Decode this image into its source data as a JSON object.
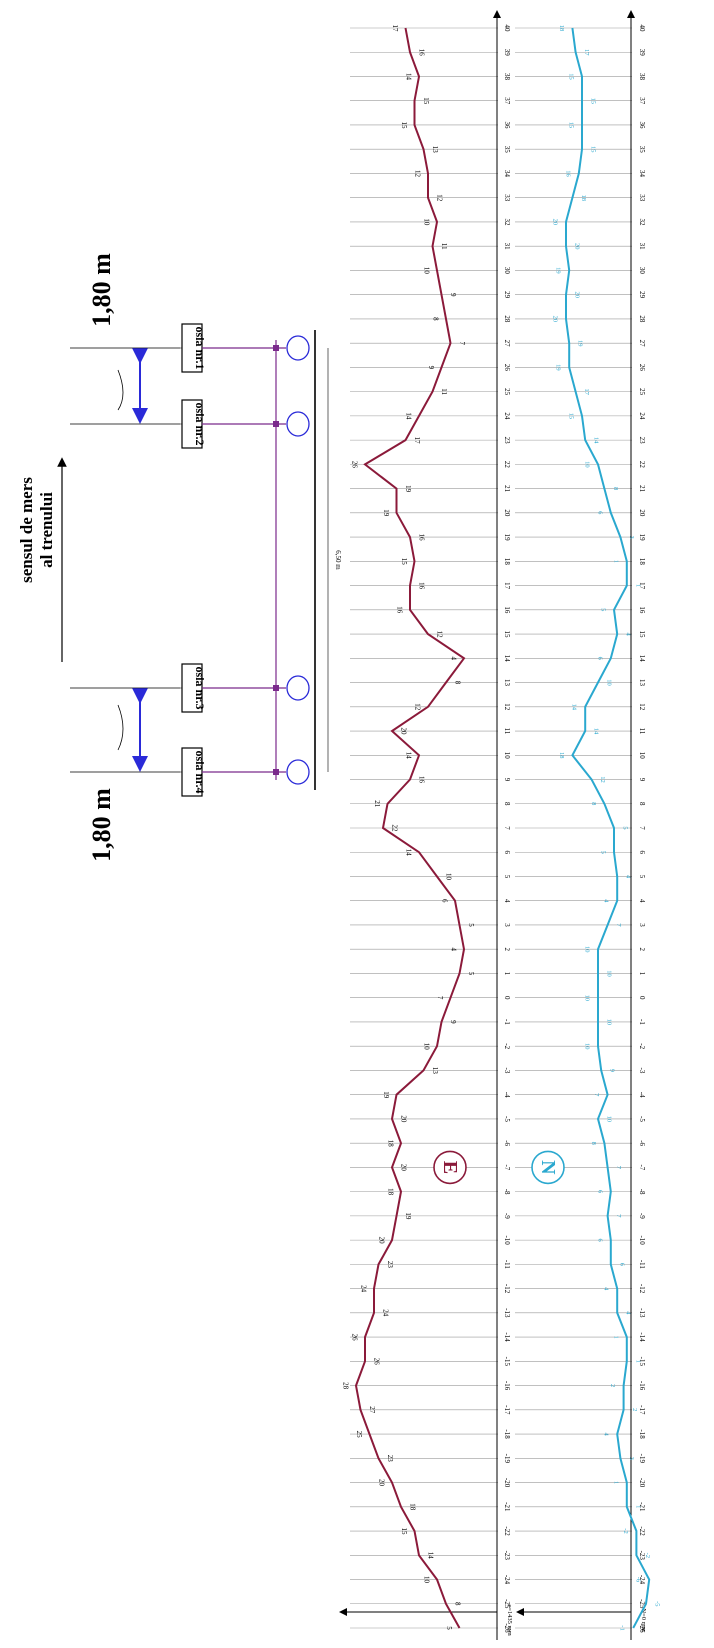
{
  "diagram": {
    "direction_label": {
      "line1": "sensul de mers",
      "line2": "al trenului"
    },
    "distance_label_top": "1,80 m",
    "distance_label_bottom": "1,80 m",
    "wheelbase_label": "6,50 m",
    "axles": [
      {
        "label": "osia nr.1"
      },
      {
        "label": "osia nr.2"
      },
      {
        "label": "osia nr.3"
      },
      {
        "label": "osia nr.4"
      }
    ],
    "colors": {
      "e_line": "#8b1a3a",
      "n_line": "#2aa8cf",
      "axle": "#7b2a8c",
      "arrow": "#2a2ad8"
    }
  },
  "chart_data": {
    "type": "line",
    "x_ticks": [
      -26,
      -25,
      -24,
      -23,
      -22,
      -21,
      -20,
      -19,
      -18,
      -17,
      -16,
      -15,
      -14,
      -13,
      -12,
      -11,
      -10,
      -9,
      -8,
      -7,
      -6,
      -5,
      -4,
      -3,
      -2,
      -1,
      0,
      1,
      2,
      3,
      4,
      5,
      6,
      7,
      8,
      9,
      10,
      11,
      12,
      13,
      14,
      15,
      16,
      17,
      18,
      19,
      20,
      21,
      22,
      23,
      24,
      25,
      26,
      27,
      28,
      29,
      30,
      31,
      32,
      33,
      34,
      35,
      36,
      37,
      38,
      39,
      40
    ],
    "series": [
      {
        "name": "E",
        "axis_label": "e=1435 mm",
        "x": [
          -26,
          -25,
          -24,
          -23,
          -22,
          -21,
          -20,
          -19,
          -18,
          -17,
          -16,
          -15,
          -14,
          -13,
          -12,
          -11,
          -10,
          -9,
          -8,
          -7,
          -6,
          -5,
          -4,
          -3,
          -2,
          -1,
          0,
          1,
          2,
          3,
          4,
          5,
          6,
          7,
          8,
          9,
          10,
          11,
          12,
          13,
          14,
          15,
          16,
          17,
          18,
          19,
          20,
          21,
          22,
          23,
          24,
          25,
          26,
          27,
          28,
          29,
          30,
          31,
          32,
          33,
          34,
          35,
          36,
          37,
          38,
          39,
          40
        ],
        "values": [
          5,
          8,
          10,
          14,
          15,
          18,
          20,
          23,
          25,
          27,
          28,
          26,
          26,
          24,
          24,
          23,
          20,
          19,
          18,
          20,
          18,
          20,
          19,
          13,
          10,
          9,
          7,
          5,
          4,
          5,
          6,
          10,
          14,
          22,
          21,
          16,
          14,
          20,
          12,
          8,
          4,
          12,
          16,
          16,
          15,
          16,
          19,
          19,
          26,
          17,
          14,
          11,
          9,
          7,
          8,
          9,
          10,
          11,
          10,
          12,
          12,
          13,
          15,
          15,
          14,
          16,
          17
        ],
        "labels": [
          "5",
          "8",
          "10",
          "14",
          "15",
          "18",
          "20",
          "23",
          "25",
          "27",
          "28",
          "26",
          "26",
          "24",
          "24",
          "23",
          "20",
          "19",
          "18",
          "20",
          "18",
          "20",
          "19",
          "13",
          "10",
          "9",
          "7",
          "5",
          "4",
          "5",
          "6",
          "10",
          "14",
          "22",
          "21",
          "16",
          "14",
          "20",
          "12",
          "8",
          "4",
          "12",
          "16",
          "16",
          "15",
          "16",
          "19",
          "19",
          "26",
          "17",
          "14",
          "11",
          "9",
          "7",
          "8",
          "9",
          "10",
          "11",
          "10",
          "12",
          "12",
          "13",
          "15",
          "15",
          "14",
          "16",
          "17"
        ]
      },
      {
        "name": "N",
        "axis_label": "N=0 mm",
        "x": [
          -26,
          -25,
          -24,
          -23,
          -22,
          -21,
          -20,
          -19,
          -18,
          -17,
          -16,
          -15,
          -14,
          -13,
          -12,
          -11,
          -10,
          -9,
          -8,
          -7,
          -6,
          -5,
          -4,
          -3,
          -2,
          -1,
          0,
          1,
          2,
          3,
          4,
          5,
          6,
          7,
          8,
          9,
          10,
          11,
          12,
          13,
          14,
          15,
          16,
          17,
          18,
          19,
          20,
          21,
          22,
          23,
          24,
          25,
          26,
          27,
          28,
          29,
          30,
          31,
          32,
          33,
          34,
          35,
          36,
          37,
          38,
          39,
          40
        ],
        "values": [
          -1,
          -5,
          -6,
          -2,
          -2,
          1,
          1,
          3,
          4,
          2,
          2,
          1,
          1,
          4,
          4,
          6,
          6,
          7,
          6,
          7,
          8,
          10,
          7,
          9,
          10,
          10,
          10,
          10,
          10,
          7,
          4,
          4,
          5,
          5,
          8,
          12,
          18,
          14,
          14,
          10,
          6,
          4,
          5,
          1,
          1,
          3,
          6,
          8,
          10,
          14,
          15,
          17,
          19,
          19,
          20,
          20,
          19,
          20,
          20,
          18,
          16,
          15,
          15,
          15,
          15,
          17,
          18
        ],
        "labels": [
          "-1",
          "-5",
          "-6",
          "-2",
          "-2",
          "1",
          "1",
          "3",
          "4",
          "2",
          "2",
          "1",
          "1",
          "4",
          "4",
          "6",
          "6",
          "7",
          "6",
          "7",
          "8",
          "10",
          "7",
          "9",
          "10",
          "10",
          "10",
          "10",
          "10",
          "7",
          "4",
          "4",
          "5",
          "5",
          "8",
          "12",
          "18",
          "14",
          "14",
          "10",
          "6",
          "4",
          "5",
          "1",
          "1",
          "3",
          "6",
          "8",
          "10",
          "14",
          "15",
          "17",
          "19",
          "19",
          "20",
          "20",
          "19",
          "20",
          "20",
          "18",
          "16",
          "15",
          "15",
          "15",
          "15",
          "17",
          "18"
        ]
      }
    ]
  }
}
